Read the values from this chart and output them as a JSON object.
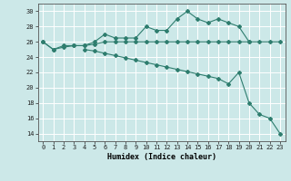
{
  "xlabel": "Humidex (Indice chaleur)",
  "bg_color": "#cce8e8",
  "grid_color": "#ffffff",
  "line_color": "#2e7d6e",
  "xlim": [
    -0.5,
    23.5
  ],
  "ylim": [
    13,
    31
  ],
  "yticks": [
    14,
    16,
    18,
    20,
    22,
    24,
    26,
    28,
    30
  ],
  "xticks": [
    0,
    1,
    2,
    3,
    4,
    5,
    6,
    7,
    8,
    9,
    10,
    11,
    12,
    13,
    14,
    15,
    16,
    17,
    18,
    19,
    20,
    21,
    22,
    23
  ],
  "series1_x": [
    0,
    1,
    2,
    3,
    4,
    5,
    6,
    7,
    8,
    9,
    10,
    11,
    12,
    13,
    14,
    15,
    16,
    17,
    18,
    19,
    20,
    21,
    22,
    23
  ],
  "series1_y": [
    26,
    25,
    25.5,
    25.5,
    25.5,
    26,
    27,
    26.5,
    26.5,
    26.5,
    28.0,
    27.5,
    27.5,
    29.0,
    30,
    29,
    28.5,
    29,
    28.5,
    28.0,
    26,
    26,
    26,
    26
  ],
  "series2_x": [
    0,
    1,
    2,
    3,
    4,
    5,
    6,
    7,
    8,
    9,
    10,
    11,
    12,
    13,
    14,
    15,
    16,
    17,
    18,
    19,
    20
  ],
  "series2_y": [
    26,
    25,
    25.3,
    25.5,
    25.5,
    25.7,
    26,
    26,
    26,
    26,
    26,
    26,
    26,
    26,
    26,
    26,
    26,
    26,
    26,
    26,
    26
  ],
  "series3_x": [
    4,
    5,
    6,
    7,
    8,
    9,
    10,
    11,
    12,
    13,
    14,
    15,
    16,
    17,
    18,
    19,
    20,
    21,
    22,
    23
  ],
  "series3_y": [
    25,
    24.8,
    24.5,
    24.2,
    23.9,
    23.6,
    23.3,
    23.0,
    22.7,
    22.4,
    22.1,
    21.8,
    21.5,
    21.2,
    20.5,
    22,
    18,
    16.5,
    16,
    14
  ]
}
